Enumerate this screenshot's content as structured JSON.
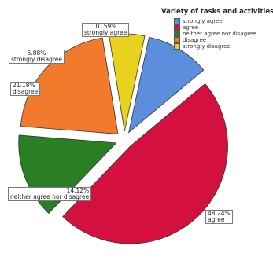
{
  "chart_data": {
    "type": "pie",
    "legend_title": "Variety of tasks and activities",
    "legend_position": "top-right",
    "slices": [
      {
        "name": "strongly agree",
        "value": 10.59,
        "pct_label": "10.59%",
        "color": "#5b8fdd"
      },
      {
        "name": "agree",
        "value": 48.24,
        "pct_label": "48.24%",
        "color": "#d4103e"
      },
      {
        "name": "neither agree nor disagree",
        "value": 14.12,
        "pct_label": "14.12%",
        "color": "#2a7f24"
      },
      {
        "name": "disagree",
        "value": 21.18,
        "pct_label": "21.18%",
        "color": "#f27a2c"
      },
      {
        "name": "strongly disagree",
        "value": 5.88,
        "pct_label": "5.88%",
        "color": "#e8d21d"
      }
    ]
  }
}
